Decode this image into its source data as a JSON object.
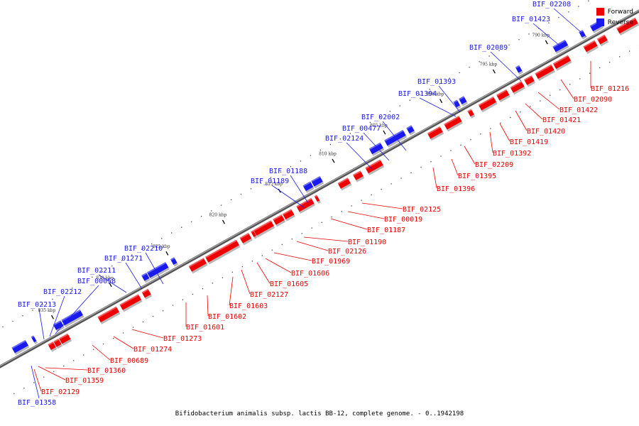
{
  "colors": {
    "forward": "#ee0000",
    "reverse": "#1a1aee",
    "backbone": "#777777"
  },
  "legend": {
    "forward_label": "Forward",
    "reverse_label": "Reverse"
  },
  "caption": "Bifidobacterium animalis subsp. lactis BB-12, complete genome. - 0..1942198",
  "scale": {
    "tick_labels": [
      "835 kbp",
      "830 kbp",
      "825 kbp",
      "820 kbp",
      "815 kbp",
      "810 kbp",
      "805 kbp",
      "800 kbp",
      "795 kbp",
      "790 kbp"
    ]
  },
  "reverse_genes": [
    "BIF_01358",
    "BIF_02213",
    "BIF_02212",
    "BIF_00058",
    "BIF_02211",
    "BIF_01271",
    "BIF_02210",
    "BIF_01189",
    "BIF_01188",
    "BIF_02124",
    "BIF_00477",
    "BIF_02002",
    "BIF_01394",
    "BIF_01393",
    "BIF_02089",
    "BIF_01423",
    "BIF_02208"
  ],
  "forward_genes": [
    "BIF_02129",
    "BIF_01359",
    "BIF_01360",
    "BIF_00689",
    "BIF_01274",
    "BIF_01273",
    "BIF_01601",
    "BIF_01602",
    "BIF_01603",
    "BIF_02127",
    "BIF_01605",
    "BIF_01606",
    "BIF_01969",
    "BIF_02126",
    "BIF_01190",
    "BIF_01187",
    "BIF_00019",
    "BIF_02125",
    "BIF_01396",
    "BIF_01395",
    "BIF_02209",
    "BIF_01392",
    "BIF_01419",
    "BIF_01420",
    "BIF_01421",
    "BIF_01422",
    "BIF_02090",
    "BIF_01216"
  ]
}
